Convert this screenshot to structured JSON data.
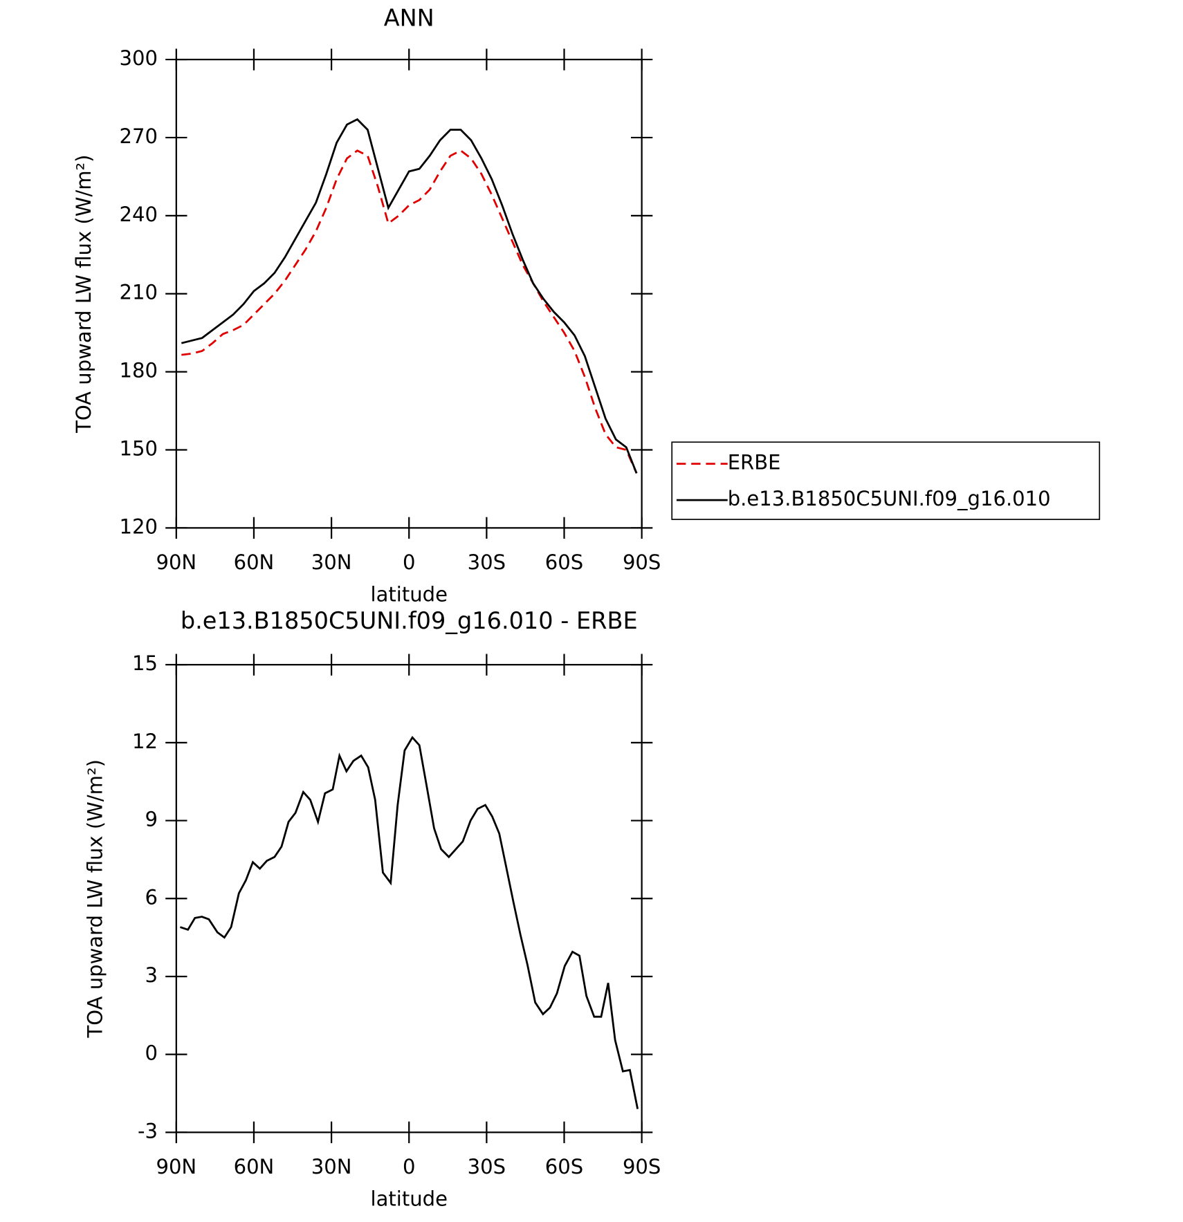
{
  "chart_data": [
    {
      "type": "line",
      "title": "ANN",
      "xlabel": "latitude",
      "ylabel": "TOA upward LW flux (W/m²)",
      "x": [
        88,
        84,
        80,
        76,
        72,
        68,
        64,
        60,
        56,
        52,
        48,
        44,
        40,
        36,
        32,
        28,
        24,
        20,
        16,
        12,
        8,
        4,
        0,
        -4,
        -8,
        -12,
        -16,
        -20,
        -24,
        -28,
        -32,
        -36,
        -40,
        -44,
        -48,
        -52,
        -56,
        -60,
        -64,
        -68,
        -72,
        -76,
        -80,
        -84,
        -88
      ],
      "series": [
        {
          "name": "ERBE",
          "color": "#e00000",
          "style": "dashed",
          "values": [
            186.5,
            187,
            188,
            191,
            194.5,
            196,
            198,
            202,
            206,
            210,
            215,
            221,
            227,
            234,
            243,
            254,
            262,
            265,
            263,
            251,
            237,
            240,
            244,
            246,
            250,
            257,
            263,
            265,
            262,
            256,
            248,
            239,
            230,
            221,
            214,
            207,
            201,
            195,
            188,
            178,
            166,
            156,
            151,
            150,
            141
          ]
        },
        {
          "name": "b.e13.B1850C5UNI.f09_g16.010",
          "color": "#000000",
          "style": "solid",
          "values": [
            191,
            192,
            193,
            196,
            199,
            202,
            206,
            211,
            214,
            218,
            224,
            231,
            238,
            245,
            256,
            268,
            275,
            277,
            273,
            258,
            243,
            250,
            257,
            258,
            263,
            269,
            273,
            273,
            269,
            262,
            254,
            244,
            233,
            223,
            214,
            208,
            203,
            199,
            194,
            186,
            174,
            162,
            154,
            151,
            141
          ]
        }
      ],
      "xlim": [
        90,
        -90
      ],
      "xticks": [
        {
          "value": 90,
          "label": "90N"
        },
        {
          "value": 60,
          "label": "60N"
        },
        {
          "value": 30,
          "label": "30N"
        },
        0,
        {
          "value": -30,
          "label": "30S"
        },
        {
          "value": -60,
          "label": "60S"
        },
        {
          "value": -90,
          "label": "90S"
        }
      ],
      "ylim": [
        120,
        300
      ],
      "yticks": [
        120,
        150,
        180,
        210,
        240,
        270,
        300
      ],
      "legend": "right"
    },
    {
      "type": "line",
      "title": "b.e13.B1850C5UNI.f09_g16.010 - ERBE",
      "xlabel": "latitude",
      "ylabel": "TOA upward LW flux (W/m²)",
      "x": [
        88.5,
        85.5,
        82.8,
        80.1,
        77.4,
        74.1,
        71.4,
        68.8,
        65.8,
        63.1,
        60.4,
        57.7,
        55.0,
        52.0,
        49.3,
        46.6,
        43.9,
        40.9,
        38.2,
        35.2,
        32.5,
        29.5,
        26.9,
        24.2,
        21.5,
        18.5,
        15.8,
        13.1,
        10.1,
        7.1,
        4.4,
        1.7,
        -1.3,
        -4.0,
        -6.7,
        -9.7,
        -12.4,
        -15.4,
        -18.1,
        -20.8,
        -23.8,
        -26.5,
        -29.5,
        -32.2,
        -34.9,
        -37.4,
        -40.4,
        -43.1,
        -45.8,
        -48.8,
        -51.8,
        -54.5,
        -57.2,
        -60.2,
        -63.2,
        -65.9,
        -68.6,
        -71.6,
        -74.3,
        -77.0,
        -79.7,
        -82.7,
        -85.4,
        -88.4
      ],
      "series": [
        {
          "color": "#000000",
          "style": "solid",
          "values": [
            4.9,
            4.8,
            5.25,
            5.3,
            5.2,
            4.7,
            4.5,
            4.9,
            6.2,
            6.7,
            7.4,
            7.15,
            7.45,
            7.6,
            8.0,
            8.95,
            9.3,
            10.1,
            9.8,
            8.95,
            10.05,
            10.2,
            11.5,
            10.9,
            11.3,
            11.5,
            11.05,
            9.8,
            7.0,
            6.6,
            9.6,
            11.7,
            12.2,
            11.9,
            10.4,
            8.7,
            7.9,
            7.6,
            7.9,
            8.2,
            9.0,
            9.45,
            9.6,
            9.15,
            8.5,
            7.3,
            5.85,
            4.6,
            3.45,
            2.0,
            1.55,
            1.8,
            2.35,
            3.4,
            3.95,
            3.8,
            2.25,
            1.45,
            1.45,
            2.75,
            0.55,
            -0.65,
            -0.6,
            -2.1
          ]
        }
      ],
      "xlim": [
        90,
        -90
      ],
      "xticks": [
        {
          "value": 90,
          "label": "90N"
        },
        {
          "value": 60,
          "label": "60N"
        },
        {
          "value": 30,
          "label": "30N"
        },
        0,
        {
          "value": -30,
          "label": "30S"
        },
        {
          "value": -60,
          "label": "60S"
        },
        {
          "value": -90,
          "label": "90S"
        }
      ],
      "ylim": [
        -3,
        15
      ],
      "yticks": [
        -3,
        0,
        3,
        6,
        9,
        12,
        15
      ]
    }
  ]
}
